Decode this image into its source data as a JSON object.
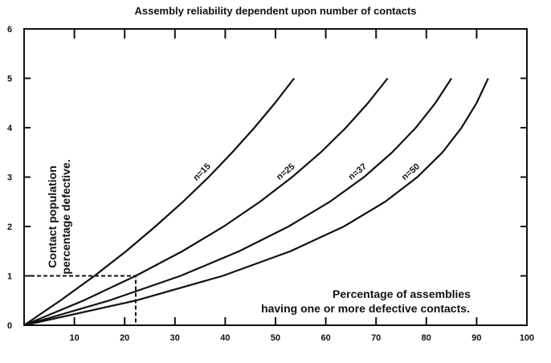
{
  "chart_data": {
    "type": "line",
    "title": "Assembly reliability dependent upon number of contacts",
    "y_label": [
      "Contact population",
      "percentage defective."
    ],
    "x_label": [
      "Percentage of assemblies",
      "having one or more defective contacts."
    ],
    "xlim": [
      0,
      100
    ],
    "ylim": [
      0,
      6
    ],
    "xticks": [
      10,
      20,
      30,
      40,
      50,
      60,
      70,
      80,
      90,
      100
    ],
    "yticks": [
      0,
      1,
      2,
      3,
      4,
      5,
      6
    ],
    "color": "#111111",
    "guide": {
      "x": 22.2,
      "y": 1
    },
    "series": [
      {
        "name": "n=15",
        "x": [
          0,
          7.2,
          14.0,
          20.3,
          26.1,
          31.6,
          36.7,
          41.4,
          45.8,
          49.9,
          53.7
        ],
        "values": [
          0,
          0.5,
          1,
          1.5,
          2,
          2.5,
          3,
          3.5,
          4,
          4.5,
          5
        ]
      },
      {
        "name": "n=25",
        "x": [
          0,
          11.8,
          22.2,
          31.5,
          39.7,
          46.9,
          53.3,
          59.0,
          64.0,
          68.4,
          72.3
        ],
        "values": [
          0,
          0.5,
          1,
          1.5,
          2,
          2.5,
          3,
          3.5,
          4,
          4.5,
          5
        ]
      },
      {
        "name": "n=37",
        "x": [
          0,
          16.9,
          31.1,
          42.8,
          52.6,
          60.8,
          67.6,
          73.2,
          77.9,
          81.8,
          85.0
        ],
        "values": [
          0,
          0.5,
          1,
          1.5,
          2,
          2.5,
          3,
          3.5,
          4,
          4.5,
          5
        ]
      },
      {
        "name": "n=50",
        "x": [
          0,
          22.2,
          39.5,
          53.0,
          63.6,
          71.8,
          78.2,
          83.2,
          87.0,
          90.0,
          92.3
        ],
        "values": [
          0,
          0.5,
          1,
          1.5,
          2,
          2.5,
          3,
          3.5,
          4,
          4.5,
          5
        ]
      }
    ]
  }
}
